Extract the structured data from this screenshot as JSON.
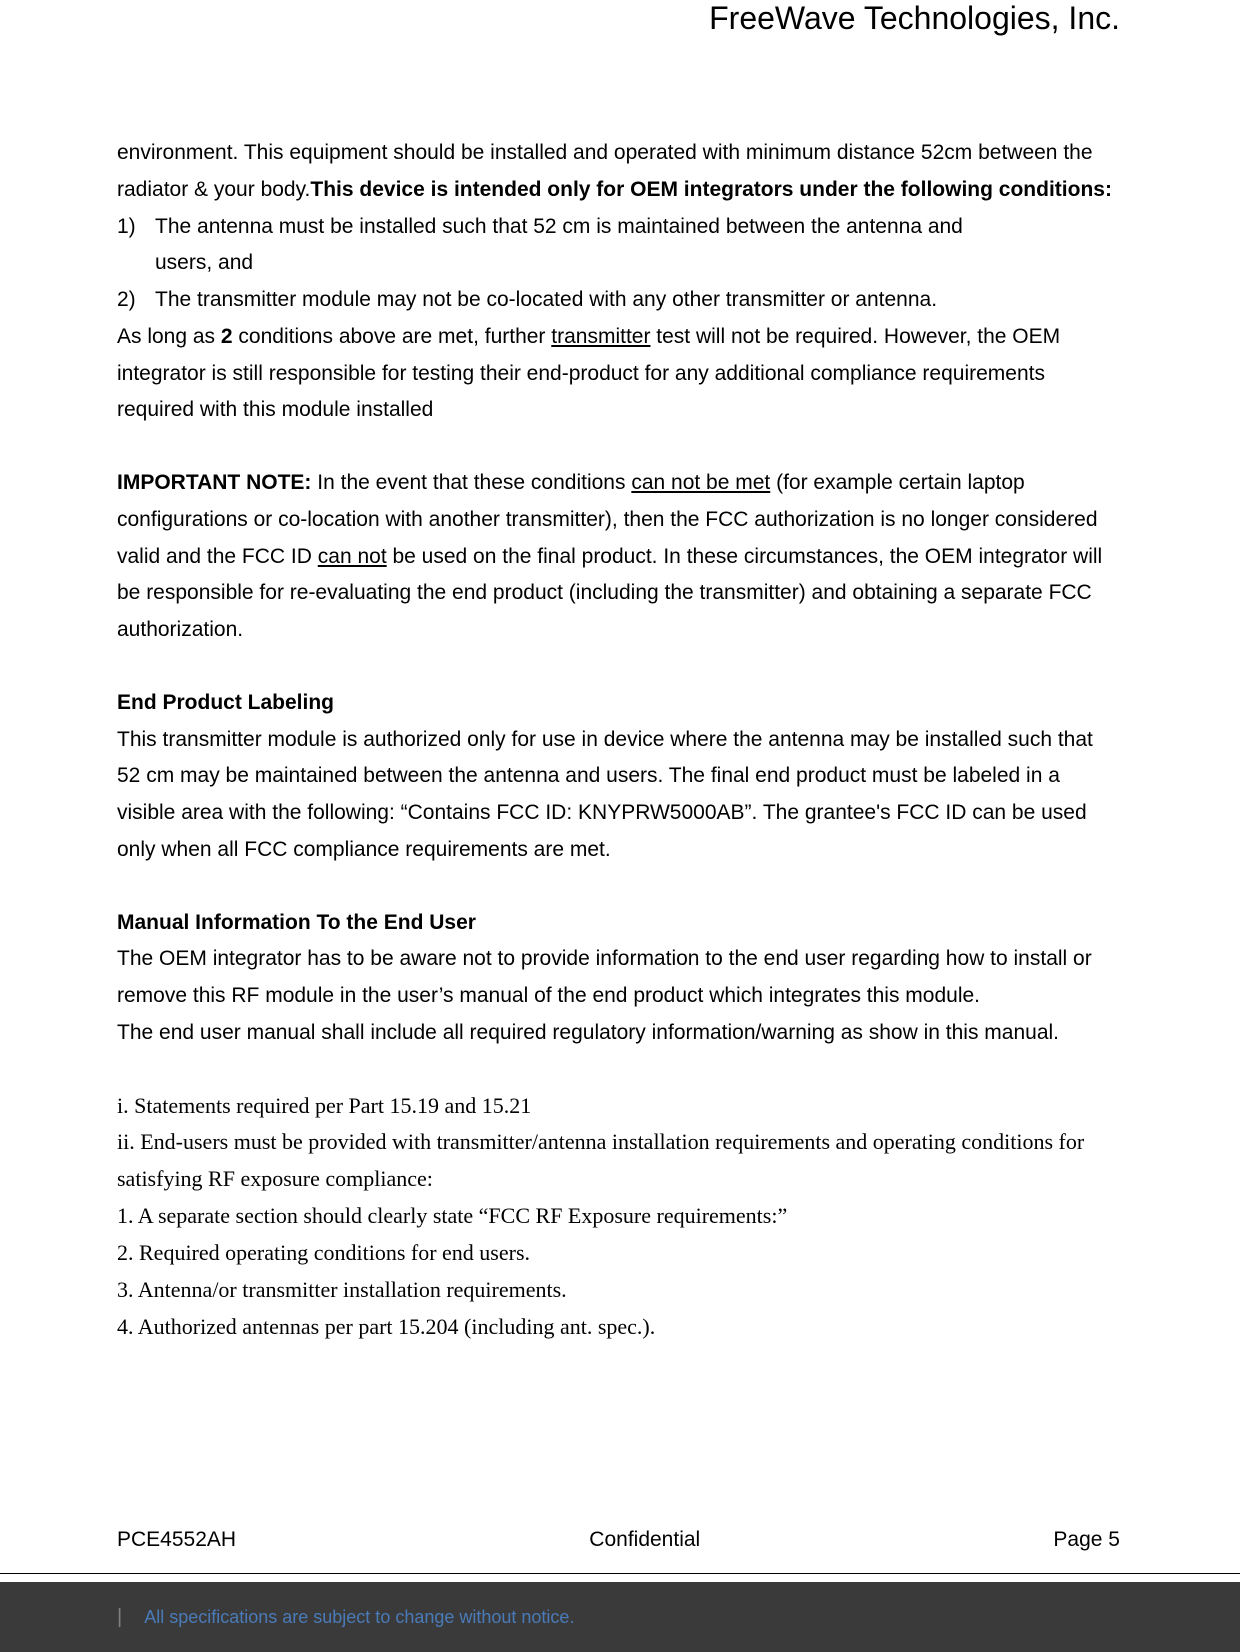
{
  "header": {
    "company": "FreeWave Technologies, Inc."
  },
  "body": {
    "intro_part1": "environment. This equipment should be installed and operated with minimum distance 52cm between the radiator & your body.",
    "intro_bold": "This device is intended only for OEM integrators under the following conditions:",
    "list1_num": "1)",
    "list1_text": "The antenna must be installed such that 52 cm is maintained between the antenna and",
    "list1_cont": "users, and",
    "list2_num": "2)",
    "list2_text": "The transmitter module may not be co-located with any other transmitter or antenna.",
    "aslongas_pre": "As long as ",
    "aslongas_bold": "2",
    "aslongas_mid": " conditions above are met, further ",
    "aslongas_ul": "transmitter",
    "aslongas_post": " test will not be required. However, the OEM integrator is still responsible for testing their end-product for any additional compliance requirements required with this module installed",
    "important_label": "IMPORTANT NOTE:",
    "important_1": " In the event that these conditions ",
    "important_ul1": "can not be met",
    "important_2": " (for example certain laptop configurations or co-location with another transmitter), then the FCC authorization is no longer considered valid and the FCC ID ",
    "important_ul2": "can not",
    "important_3": " be used on the final product. In these circumstances, the OEM integrator will be responsible for re-evaluating the end product (including the transmitter) and obtaining a separate FCC authorization.",
    "labeling_heading": "End Product Labeling",
    "labeling_text": "This transmitter module is authorized only for use in device where the antenna may be installed such that 52 cm may be maintained between the antenna and users. The final end product must be labeled in a visible area with the following: “Contains FCC ID: KNYPRW5000AB”. The grantee's FCC ID can be used only when all FCC compliance requirements are met.",
    "manual_heading": "Manual Information To the End User",
    "manual_p1": "The OEM integrator has to be aware not to provide information to the end user regarding how to install or remove this RF module in the user’s manual of the end product which integrates this module.",
    "manual_p2": "The end user manual shall include all required regulatory information/warning as show in this manual.",
    "roman_i": "i. Statements required per Part 15.19 and 15.21",
    "roman_ii": "ii. End-users must be provided with transmitter/antenna installation requirements and operating conditions for satisfying RF exposure compliance:",
    "num_1": "1. A separate section should clearly state “FCC RF Exposure requirements:”",
    "num_2": "2. Required operating conditions for end users.",
    "num_3": "3. Antenna/or transmitter installation requirements.",
    "num_4": "4. Authorized antennas per part 15.204 (including ant. spec.)."
  },
  "footer": {
    "left": "PCE4552AH",
    "center": "Confidential",
    "right": "Page 5",
    "notice": "All specifications are subject to change without notice."
  }
}
